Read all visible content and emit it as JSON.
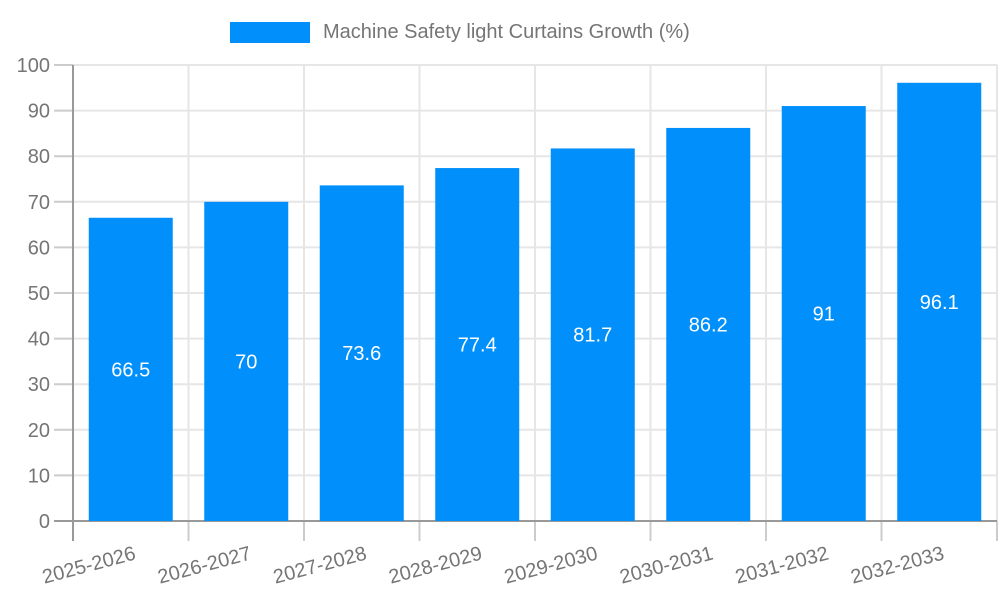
{
  "chart_data": {
    "type": "bar",
    "title": "Machine Safety light Curtains Growth (%)",
    "legend": {
      "position": "top",
      "entries": [
        {
          "label": "Machine Safety light Curtains Growth (%)",
          "marker": "rect"
        }
      ]
    },
    "categories": [
      "2025-2026",
      "2026-2027",
      "2027-2028",
      "2028-2029",
      "2029-2030",
      "2030-2031",
      "2031-2032",
      "2032-2033"
    ],
    "values": [
      66.5,
      70,
      73.6,
      77.4,
      81.7,
      86.2,
      91,
      96.1
    ],
    "value_labels": [
      "66.5",
      "70",
      "73.6",
      "77.4",
      "81.7",
      "86.2",
      "91",
      "96.1"
    ],
    "value_label_placement": "inside-center",
    "xlabel": "",
    "ylabel": "",
    "ylim": [
      0,
      100
    ],
    "ytick_step": 10,
    "ytick_labels": [
      "0",
      "10",
      "20",
      "30",
      "40",
      "50",
      "60",
      "70",
      "80",
      "90",
      "100"
    ],
    "grid": true,
    "x_label_rotation_deg": -15,
    "colors": {
      "bar": "#008FFB",
      "grid_line": "#e6e6e6",
      "axis_line": "#999999",
      "tick_line": "#cccccc",
      "axis_label_text": "#757575",
      "legend_text": "#757575",
      "value_label_text": "#ffffff",
      "background": "#ffffff"
    }
  }
}
